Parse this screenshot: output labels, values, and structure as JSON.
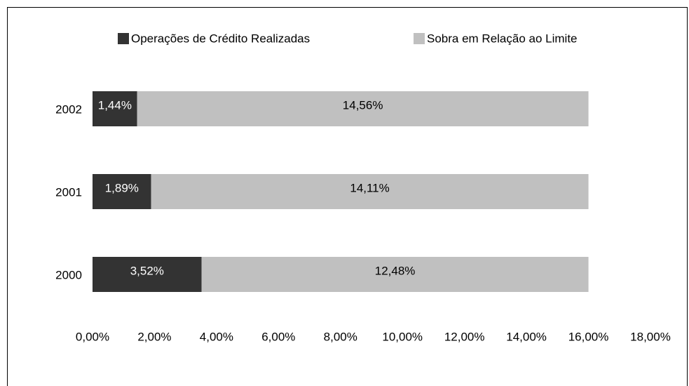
{
  "chart_data": {
    "type": "stacked-bar-horizontal",
    "categories": [
      "2002",
      "2001",
      "2000"
    ],
    "series": [
      {
        "name": "Operações de Crédito Realizadas",
        "color": "#333333",
        "values": [
          1.44,
          1.89,
          3.52
        ],
        "value_labels": [
          "1,44%",
          "1,89%",
          "3,52%"
        ],
        "label_color": "#ffffff"
      },
      {
        "name": "Sobra em Relação ao Limite",
        "color": "#c0c0c0",
        "values": [
          14.56,
          14.11,
          12.48
        ],
        "value_labels": [
          "14,56%",
          "14,11%",
          "12,48%"
        ],
        "label_color": "#000000"
      }
    ],
    "xlim": [
      0,
      18
    ],
    "xticks": [
      {
        "value": 0,
        "label": "0,00%"
      },
      {
        "value": 2,
        "label": "2,00%"
      },
      {
        "value": 4,
        "label": "4,00%"
      },
      {
        "value": 6,
        "label": "6,00%"
      },
      {
        "value": 8,
        "label": "8,00%"
      },
      {
        "value": 10,
        "label": "10,00%"
      },
      {
        "value": 12,
        "label": "12,00%"
      },
      {
        "value": 14,
        "label": "14,00%"
      },
      {
        "value": 16,
        "label": "16,00%"
      },
      {
        "value": 18,
        "label": "18,00%"
      }
    ],
    "grid": false,
    "legend": "top"
  }
}
